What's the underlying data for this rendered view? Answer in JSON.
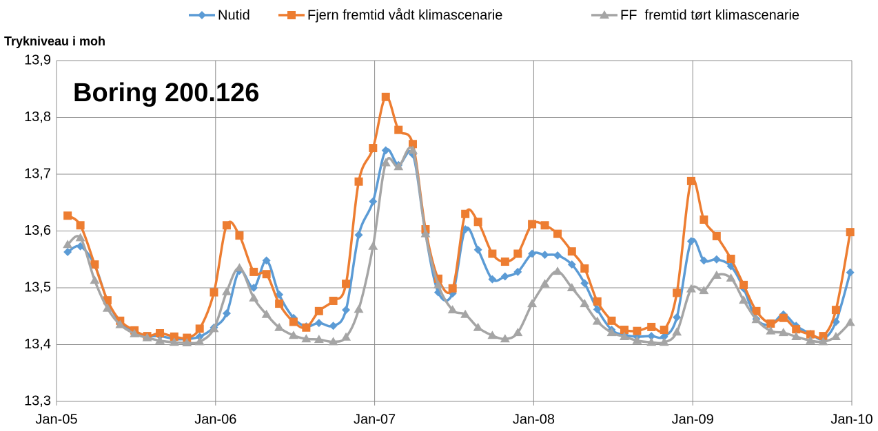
{
  "chart_data": {
    "type": "line",
    "title": "Boring 200.126",
    "y_label": "Trykniveau i moh",
    "legend": "top",
    "grid": true,
    "xlim": [
      2005,
      2010
    ],
    "xticks": [
      {
        "value": 2005,
        "label": "Jan-05"
      },
      {
        "value": 2006,
        "label": "Jan-06"
      },
      {
        "value": 2007,
        "label": "Jan-07"
      },
      {
        "value": 2008,
        "label": "Jan-08"
      },
      {
        "value": 2009,
        "label": "Jan-09"
      },
      {
        "value": 2010,
        "label": "Jan-10"
      }
    ],
    "ylim": [
      13.3,
      13.9
    ],
    "yticks": [
      {
        "value": 13.3,
        "label": "13,3"
      },
      {
        "value": 13.4,
        "label": "13,4"
      },
      {
        "value": 13.5,
        "label": "13,5"
      },
      {
        "value": 13.6,
        "label": "13,6"
      },
      {
        "value": 13.7,
        "label": "13,7"
      },
      {
        "value": 13.8,
        "label": "13,8"
      },
      {
        "value": 13.9,
        "label": "13,9"
      }
    ],
    "x": [
      2005.07,
      2005.15,
      2005.24,
      2005.32,
      2005.4,
      2005.49,
      2005.57,
      2005.65,
      2005.74,
      2005.82,
      2005.9,
      2005.99,
      2006.07,
      2006.15,
      2006.24,
      2006.32,
      2006.4,
      2006.49,
      2006.57,
      2006.65,
      2006.74,
      2006.82,
      2006.9,
      2006.99,
      2007.07,
      2007.15,
      2007.24,
      2007.32,
      2007.4,
      2007.49,
      2007.57,
      2007.65,
      2007.74,
      2007.82,
      2007.9,
      2007.99,
      2008.07,
      2008.15,
      2008.24,
      2008.32,
      2008.4,
      2008.49,
      2008.57,
      2008.65,
      2008.74,
      2008.82,
      2008.9,
      2008.99,
      2009.07,
      2009.15,
      2009.24,
      2009.32,
      2009.4,
      2009.49,
      2009.57,
      2009.65,
      2009.74,
      2009.82,
      2009.9,
      2009.99
    ],
    "series": [
      {
        "name": "Nutid",
        "color": "#5b9bd5",
        "marker": "diamond",
        "values": [
          13.563,
          13.573,
          13.54,
          13.477,
          13.44,
          13.424,
          13.415,
          13.415,
          13.41,
          13.41,
          13.414,
          13.43,
          13.455,
          13.53,
          13.5,
          13.548,
          13.488,
          13.447,
          13.432,
          13.438,
          13.433,
          13.461,
          13.593,
          13.652,
          13.742,
          13.716,
          13.735,
          13.595,
          13.492,
          13.49,
          13.603,
          13.567,
          13.515,
          13.52,
          13.528,
          13.56,
          13.558,
          13.557,
          13.541,
          13.508,
          13.462,
          13.426,
          13.417,
          13.414,
          13.415,
          13.414,
          13.448,
          13.582,
          13.548,
          13.55,
          13.538,
          13.499,
          13.445,
          13.435,
          13.453,
          13.433,
          13.419,
          13.41,
          13.44,
          13.527
        ]
      },
      {
        "name": "Fjern fremtid vådt klimascenarie",
        "color": "#ed7d31",
        "marker": "square",
        "values": [
          13.627,
          13.61,
          13.541,
          13.478,
          13.442,
          13.425,
          13.415,
          13.42,
          13.414,
          13.412,
          13.428,
          13.492,
          13.61,
          13.592,
          13.528,
          13.524,
          13.472,
          13.44,
          13.43,
          13.459,
          13.477,
          13.507,
          13.687,
          13.746,
          13.836,
          13.778,
          13.753,
          13.603,
          13.516,
          13.499,
          13.63,
          13.616,
          13.56,
          13.546,
          13.56,
          13.612,
          13.61,
          13.595,
          13.564,
          13.534,
          13.476,
          13.442,
          13.426,
          13.424,
          13.431,
          13.426,
          13.491,
          13.688,
          13.62,
          13.591,
          13.551,
          13.505,
          13.459,
          13.437,
          13.447,
          13.427,
          13.418,
          13.415,
          13.461,
          13.598
        ]
      },
      {
        "name": "FF  fremtid tørt klimascenarie",
        "color": "#a5a5a5",
        "marker": "triangle",
        "values": [
          13.576,
          13.588,
          13.513,
          13.464,
          13.435,
          13.419,
          13.412,
          13.407,
          13.404,
          13.403,
          13.405,
          13.428,
          13.493,
          13.535,
          13.482,
          13.453,
          13.43,
          13.416,
          13.41,
          13.409,
          13.405,
          13.413,
          13.462,
          13.573,
          13.72,
          13.713,
          13.742,
          13.595,
          13.505,
          13.461,
          13.453,
          13.43,
          13.416,
          13.41,
          13.421,
          13.472,
          13.507,
          13.529,
          13.5,
          13.472,
          13.441,
          13.421,
          13.414,
          13.407,
          13.404,
          13.404,
          13.422,
          13.498,
          13.495,
          13.522,
          13.517,
          13.478,
          13.444,
          13.424,
          13.421,
          13.414,
          13.407,
          13.405,
          13.414,
          13.439
        ]
      }
    ]
  }
}
